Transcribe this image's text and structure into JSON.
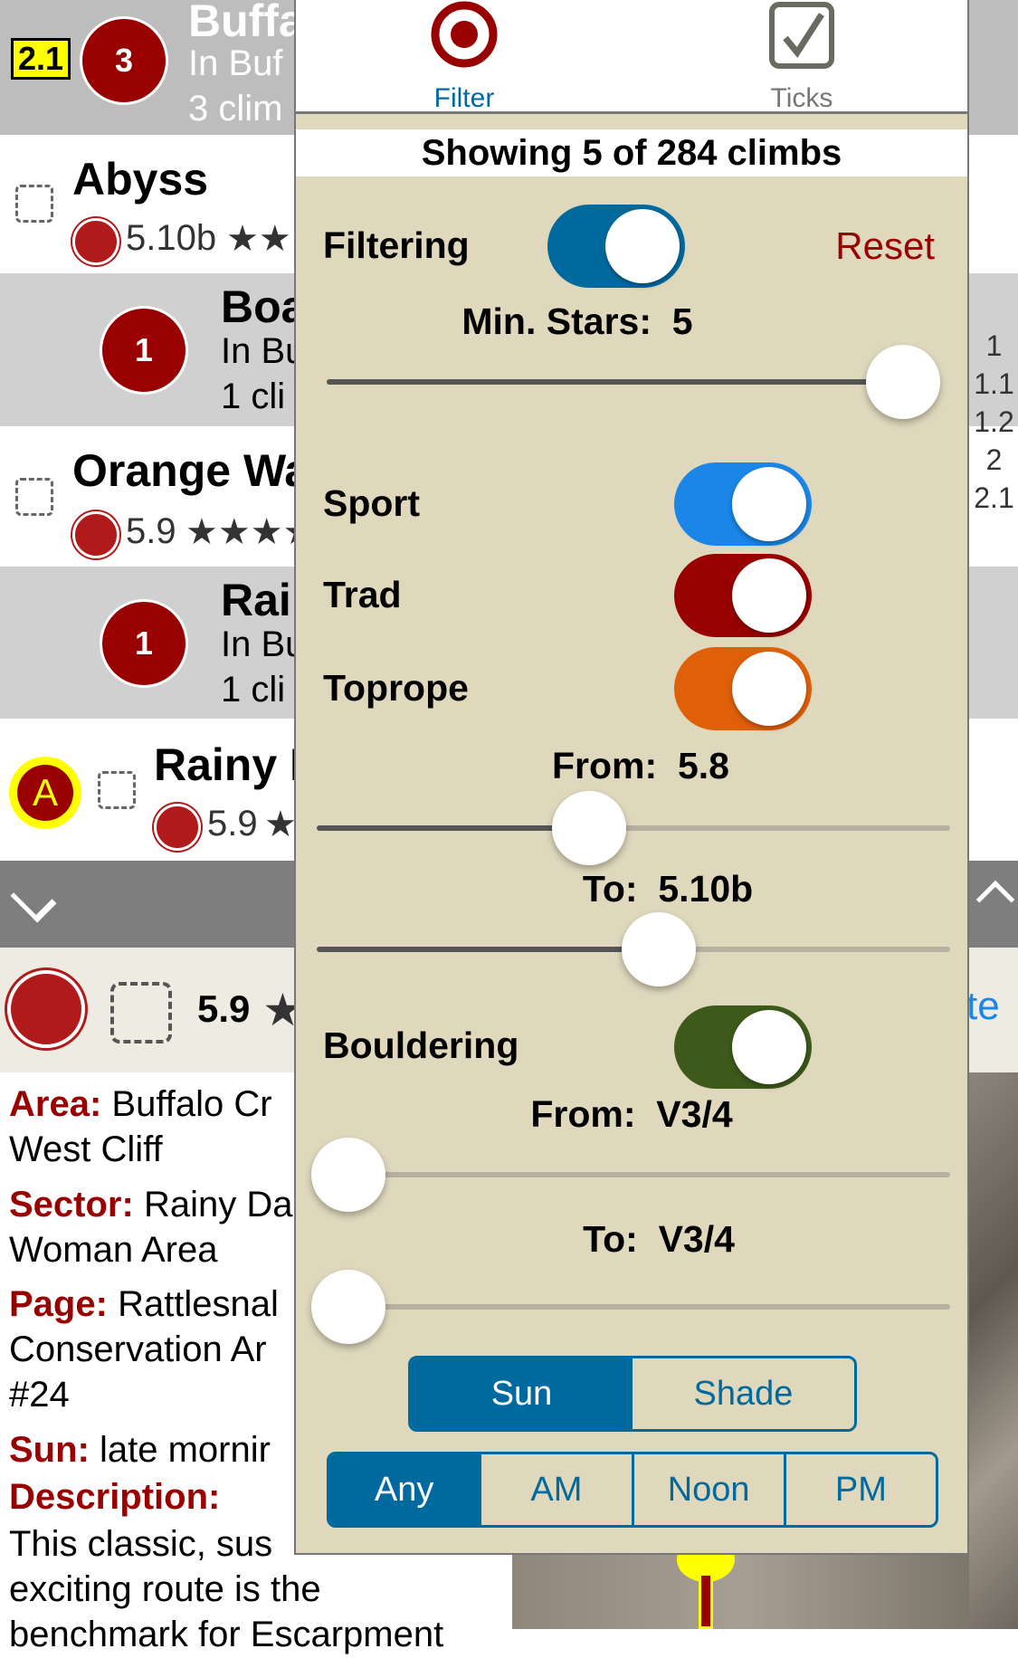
{
  "list": {
    "header": {
      "badge": "2.1",
      "count": "3",
      "title": "Buffa",
      "sub1": "In Buf",
      "sub2": "3 clim"
    },
    "rows": [
      {
        "type": "climb",
        "title": "Abyss",
        "grade": "5.10b",
        "stars": "★★★"
      },
      {
        "type": "area",
        "count": "1",
        "title": "Boa",
        "sub1": "In Bu",
        "sub2": "1 cli"
      },
      {
        "type": "climb",
        "title": "Orange Wa",
        "grade": "5.9",
        "stars": "★★★★"
      },
      {
        "type": "area",
        "count": "1",
        "title": "Rai",
        "sub1": "In Bu",
        "sub2": "1 cli"
      },
      {
        "type": "climb",
        "marker": "A",
        "title": "Rainy I",
        "grade": "5.9",
        "stars": "★"
      }
    ],
    "index": [
      "1",
      "1.1",
      "1.2",
      "2",
      "2.1"
    ]
  },
  "detail": {
    "grade": "5.9",
    "stars": "★",
    "edge_text": "te",
    "fields": [
      {
        "label": "Area:",
        "value": "Buffalo Cr",
        "cont": "West Cliff"
      },
      {
        "label": "Sector:",
        "value": "Rainy Da",
        "cont": "Woman Area"
      },
      {
        "label": "Page:",
        "value": "Rattlesnal",
        "cont": "Conservation Ar",
        "cont2": "#24"
      },
      {
        "label": "Sun:",
        "value": "late mornir"
      },
      {
        "label": "Description:",
        "value": ""
      }
    ],
    "description_lines": [
      "This classic, sus",
      "exciting route is the",
      "benchmark for Escarpment"
    ],
    "map_marker": "A"
  },
  "popover": {
    "tabs": [
      {
        "label": "Filter",
        "icon": "target-icon",
        "active": true
      },
      {
        "label": "Ticks",
        "icon": "checkbox-icon",
        "active": false
      }
    ],
    "summary": "Showing 5 of 284 climbs",
    "filtering": {
      "label": "Filtering",
      "on": true,
      "color": "#006a9e"
    },
    "reset": "Reset",
    "min_stars": {
      "label": "Min. Stars:",
      "value": "5",
      "fraction": 1.0
    },
    "types": [
      {
        "label": "Sport",
        "on": true,
        "color": "#1a86e8"
      },
      {
        "label": "Trad",
        "on": true,
        "color": "#990000"
      },
      {
        "label": "Toprope",
        "on": true,
        "color": "#e0600a"
      }
    ],
    "grade_from": {
      "label": "From:",
      "value": "5.8",
      "fraction": 0.43
    },
    "grade_to": {
      "label": "To:",
      "value": "5.10b",
      "fraction": 0.54
    },
    "bouldering": {
      "label": "Bouldering",
      "on": true,
      "color": "#3d5a1a"
    },
    "boulder_from": {
      "label": "From:",
      "value": "V3/4",
      "fraction": 0.05
    },
    "boulder_to": {
      "label": "To:",
      "value": "V3/4",
      "fraction": 0.05
    },
    "sun_shade": {
      "options": [
        "Sun",
        "Shade"
      ],
      "selected": "Sun"
    },
    "time": {
      "options": [
        "Any",
        "AM",
        "Noon",
        "PM"
      ],
      "selected": "Any"
    }
  }
}
